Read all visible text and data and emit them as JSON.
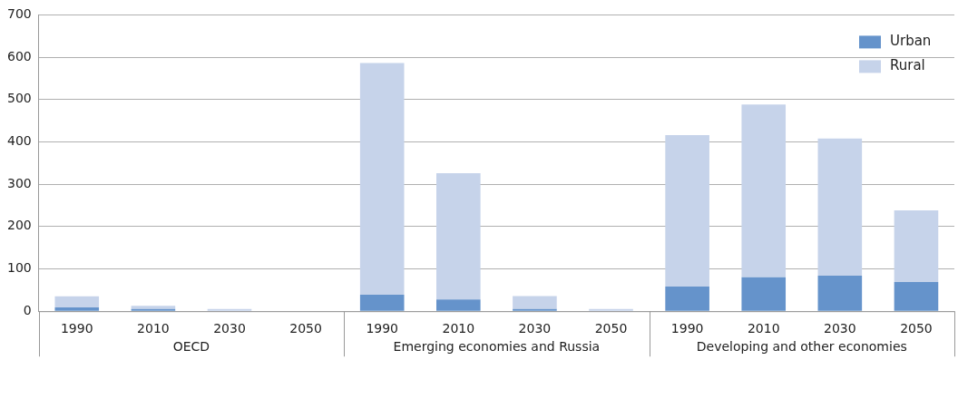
{
  "chart_data": {
    "type": "bar",
    "stacked": true,
    "categories": [
      "1990",
      "2010",
      "2030",
      "2050",
      "1990",
      "2010",
      "2030",
      "2050",
      "1990",
      "2010",
      "2030",
      "2050"
    ],
    "series": [
      {
        "name": "Urban",
        "color": "#6593cb",
        "values": [
          9,
          5,
          0,
          0,
          39,
          28,
          5,
          0,
          58,
          80,
          84,
          69
        ]
      },
      {
        "name": "Rural",
        "color": "#c6d3ea",
        "values": [
          26,
          8,
          5,
          0,
          547,
          298,
          31,
          5,
          358,
          408,
          324,
          169
        ]
      }
    ],
    "annotations": [
      "OECD",
      "Emerging economies and Russia",
      "Developing and other economies"
    ],
    "ylim": [
      0,
      700
    ],
    "yticks": [
      0,
      100,
      200,
      300,
      400,
      500,
      600,
      700
    ],
    "grid": "y",
    "legend": "top right"
  }
}
